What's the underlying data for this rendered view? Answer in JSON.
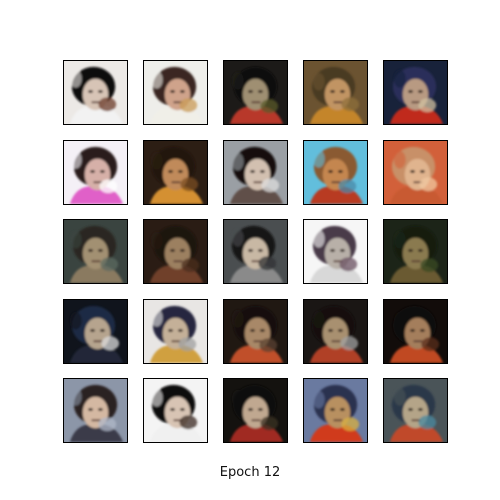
{
  "figure": {
    "caption": "Epoch 12"
  },
  "samples": [
    {
      "bg": "#ece9e6",
      "face": "#d7c4b6",
      "hair": "#0c0909",
      "cloth": "#f2f2f2",
      "accent": "#6b3b2a"
    },
    {
      "bg": "#eeeeea",
      "face": "#cfa38b",
      "hair": "#3a2620",
      "cloth": "#f0efe8",
      "accent": "#c99b55"
    },
    {
      "bg": "#1c1a18",
      "face": "#9f8f72",
      "hair": "#0e0c0b",
      "cloth": "#b8392a",
      "accent": "#5a5a2a"
    },
    {
      "bg": "#6b5331",
      "face": "#c19464",
      "hair": "#4a3a22",
      "cloth": "#c4852a",
      "accent": "#8d6f3a"
    },
    {
      "bg": "#18223a",
      "face": "#b89a82",
      "hair": "#2b2f5a",
      "cloth": "#c0291c",
      "accent": "#d0c0a0"
    },
    {
      "bg": "#f4f0f6",
      "face": "#d6b0a8",
      "hair": "#2a1c1c",
      "cloth": "#e060c8",
      "accent": "#ffffff"
    },
    {
      "bg": "#2c1e14",
      "face": "#c08a5a",
      "hair": "#24160e",
      "cloth": "#d49030",
      "accent": "#7a4c20"
    },
    {
      "bg": "#9a9fa4",
      "face": "#d2c0b0",
      "hair": "#15110f",
      "cloth": "#60504a",
      "accent": "#dedede"
    },
    {
      "bg": "#62bedc",
      "face": "#c48650",
      "hair": "#8a5a30",
      "cloth": "#b83a20",
      "accent": "#4a8aa8"
    },
    {
      "bg": "#d2603a",
      "face": "#e0b48e",
      "hair": "#c89068",
      "cloth": "#c85a30",
      "accent": "#f0c8a0"
    },
    {
      "bg": "#3a4440",
      "face": "#a29072",
      "hair": "#2a2622",
      "cloth": "#8a7a60",
      "accent": "#5c6a60"
    },
    {
      "bg": "#2a1c14",
      "face": "#9c8060",
      "hair": "#1a120c",
      "cloth": "#70402a",
      "accent": "#4a2e1e"
    },
    {
      "bg": "#4a4e50",
      "face": "#c8b8a4",
      "hair": "#151312",
      "cloth": "#8a8a8a",
      "accent": "#303234"
    },
    {
      "bg": "#f6f6f6",
      "face": "#b8b0a8",
      "hair": "#4a3a48",
      "cloth": "#d8d8d8",
      "accent": "#6a5060"
    },
    {
      "bg": "#1c2418",
      "face": "#8a7a50",
      "hair": "#141a10",
      "cloth": "#6a5a30",
      "accent": "#3a4a24"
    },
    {
      "bg": "#10141c",
      "face": "#b6a48e",
      "hair": "#1e2a44",
      "cloth": "#202838",
      "accent": "#dadada"
    },
    {
      "bg": "#e8e6e4",
      "face": "#c4b098",
      "hair": "#262840",
      "cloth": "#d0a040",
      "accent": "#a0a0a0"
    },
    {
      "bg": "#201812",
      "face": "#a88868",
      "hair": "#181010",
      "cloth": "#c0502a",
      "accent": "#5a4030"
    },
    {
      "bg": "#1a1614",
      "face": "#a89070",
      "hair": "#120e0c",
      "cloth": "#b04028",
      "accent": "#a0a0a0"
    },
    {
      "bg": "#120c0a",
      "face": "#a47e5c",
      "hair": "#0c0808",
      "cloth": "#c04a22",
      "accent": "#5a2e1c"
    },
    {
      "bg": "#8c96a8",
      "face": "#d4b8a2",
      "hair": "#2a2020",
      "cloth": "#3a3a48",
      "accent": "#b0b8c8"
    },
    {
      "bg": "#f4f4f4",
      "face": "#d8c4b4",
      "hair": "#0a0808",
      "cloth": "#f0f0f0",
      "accent": "#3a2a20"
    },
    {
      "bg": "#14120f",
      "face": "#c0a890",
      "hair": "#0c0a08",
      "cloth": "#a02a20",
      "accent": "#3a3020"
    },
    {
      "bg": "#6a7aa0",
      "face": "#b89060",
      "hair": "#2a3050",
      "cloth": "#d03a1a",
      "accent": "#d8b040"
    },
    {
      "bg": "#4a5458",
      "face": "#b4a488",
      "hair": "#2a3848",
      "cloth": "#c04a2a",
      "accent": "#4a8aa0"
    }
  ]
}
